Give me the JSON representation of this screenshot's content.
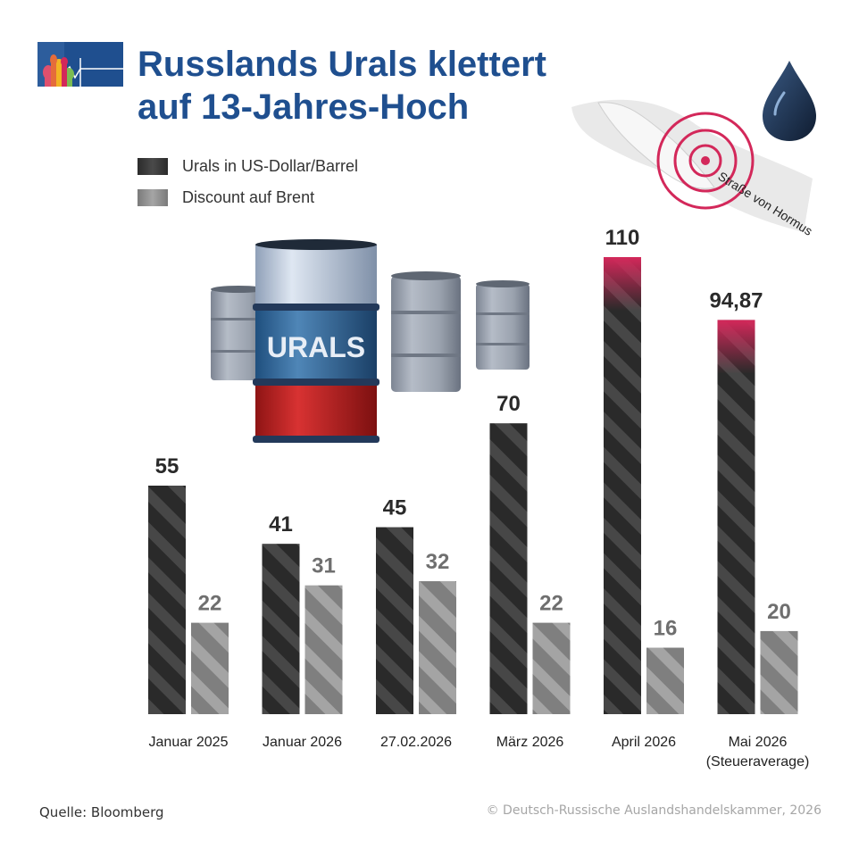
{
  "title_line1": "Russlands Urals klettert",
  "title_line2": "auf 13-Jahres-Hoch",
  "hormus_label": "Straße von Hormus",
  "barrel_label": "URALS",
  "source": "Quelle: Bloomberg",
  "copyright": "© Deutsch-Russische Auslandshandelskammer, 2026",
  "colors": {
    "title": "#1f4f8f",
    "urals_bar": "#2a2a2a",
    "discount_bar": "#8e8e8e",
    "highlight": "#d3285a",
    "hormus_circles": "#d3285a",
    "oil_drop": "#1c2f4c"
  },
  "icons": [
    "kremlin-logo-icon",
    "oil-drop-icon",
    "oil-barrel-icon",
    "hormuz-map-icon"
  ],
  "chart_data": {
    "type": "bar",
    "categories": [
      [
        "Januar 2025"
      ],
      [
        "Januar 2026"
      ],
      [
        "27.02.2026"
      ],
      [
        "März 2026"
      ],
      [
        "April 2026"
      ],
      [
        "Mai 2026",
        "(Steueraverage)"
      ]
    ],
    "series": [
      {
        "name": "Urals in US-Dollar/Barrel",
        "values": [
          55,
          41,
          45,
          70,
          110,
          94.87
        ],
        "labels": [
          "55",
          "41",
          "45",
          "70",
          "110",
          "94,87"
        ],
        "color": "#2a2a2a",
        "highlight_top": [
          false,
          false,
          false,
          false,
          true,
          true
        ]
      },
      {
        "name": "Discount auf Brent",
        "values": [
          22,
          31,
          32,
          22,
          16,
          20
        ],
        "labels": [
          "22",
          "31",
          "32",
          "22",
          "16",
          "20"
        ],
        "color": "#8e8e8e"
      }
    ],
    "ylim": [
      0,
      110
    ],
    "grid": false,
    "legend": "top-left"
  }
}
